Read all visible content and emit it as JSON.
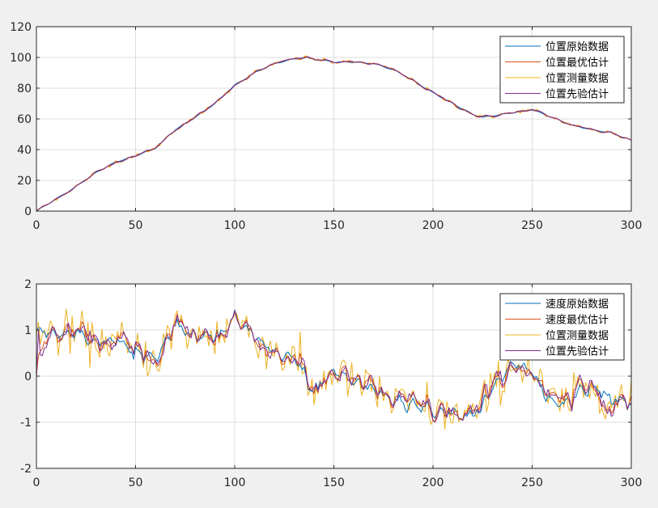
{
  "chart_data": [
    {
      "type": "line",
      "xlim": [
        0,
        300
      ],
      "ylim": [
        0,
        120
      ],
      "xticks": [
        0,
        50,
        100,
        150,
        200,
        250,
        300
      ],
      "yticks": [
        0,
        20,
        40,
        60,
        80,
        100,
        120
      ],
      "grid": true,
      "legend": "top-right",
      "x_step": 1,
      "series": [
        {
          "name": "位置原始数据",
          "color": "#0072BD",
          "style": "exact"
        },
        {
          "name": "位置最优估计",
          "color": "#D95319",
          "style": "exact"
        },
        {
          "name": "位置测量数据",
          "color": "#EDB120",
          "style": "exact"
        },
        {
          "name": "位置先验估计",
          "color": "#7E2F8E",
          "style": "exact"
        }
      ],
      "shape": {
        "x": [
          0,
          10,
          20,
          30,
          40,
          50,
          60,
          70,
          80,
          90,
          100,
          110,
          120,
          130,
          135,
          140,
          150,
          160,
          170,
          180,
          190,
          200,
          210,
          220,
          225,
          230,
          240,
          250,
          260,
          270,
          280,
          290,
          300
        ],
        "y": [
          0,
          8,
          16,
          25,
          32,
          36,
          41,
          53,
          61,
          70,
          82,
          90,
          96,
          99,
          100,
          99,
          97,
          97,
          96,
          92,
          85,
          77,
          70,
          63,
          61,
          62,
          64,
          66,
          61,
          56,
          53,
          51,
          46
        ]
      }
    },
    {
      "type": "line",
      "xlim": [
        0,
        300
      ],
      "ylim": [
        -2,
        2
      ],
      "xticks": [
        0,
        50,
        100,
        150,
        200,
        250,
        300
      ],
      "yticks": [
        -2,
        -1,
        0,
        1,
        2
      ],
      "grid": true,
      "legend": "top-right",
      "x_step": 1,
      "series": [
        {
          "name": "速度原始数据",
          "color": "#0072BD",
          "style": "smooth"
        },
        {
          "name": "速度最优估计",
          "color": "#D95319",
          "style": "filtered"
        },
        {
          "name": "位置测量数据",
          "color": "#EDB120",
          "style": "noisy"
        },
        {
          "name": "位置先验估计",
          "color": "#7E2F8E",
          "style": "filtered"
        }
      ],
      "shape": {
        "x": [
          0,
          10,
          20,
          30,
          40,
          50,
          60,
          70,
          80,
          90,
          100,
          110,
          120,
          130,
          140,
          150,
          160,
          170,
          180,
          190,
          200,
          210,
          220,
          230,
          240,
          250,
          260,
          270,
          280,
          290,
          300
        ],
        "y": [
          1.0,
          0.9,
          1.0,
          0.7,
          0.8,
          0.5,
          0.4,
          1.1,
          0.9,
          0.8,
          1.25,
          0.9,
          0.5,
          0.4,
          -0.35,
          0.1,
          -0.1,
          -0.3,
          -0.5,
          -0.6,
          -0.75,
          -0.8,
          -0.9,
          -0.3,
          0.3,
          0.1,
          -0.6,
          -0.5,
          -0.2,
          -0.5,
          -0.6
        ]
      }
    }
  ]
}
